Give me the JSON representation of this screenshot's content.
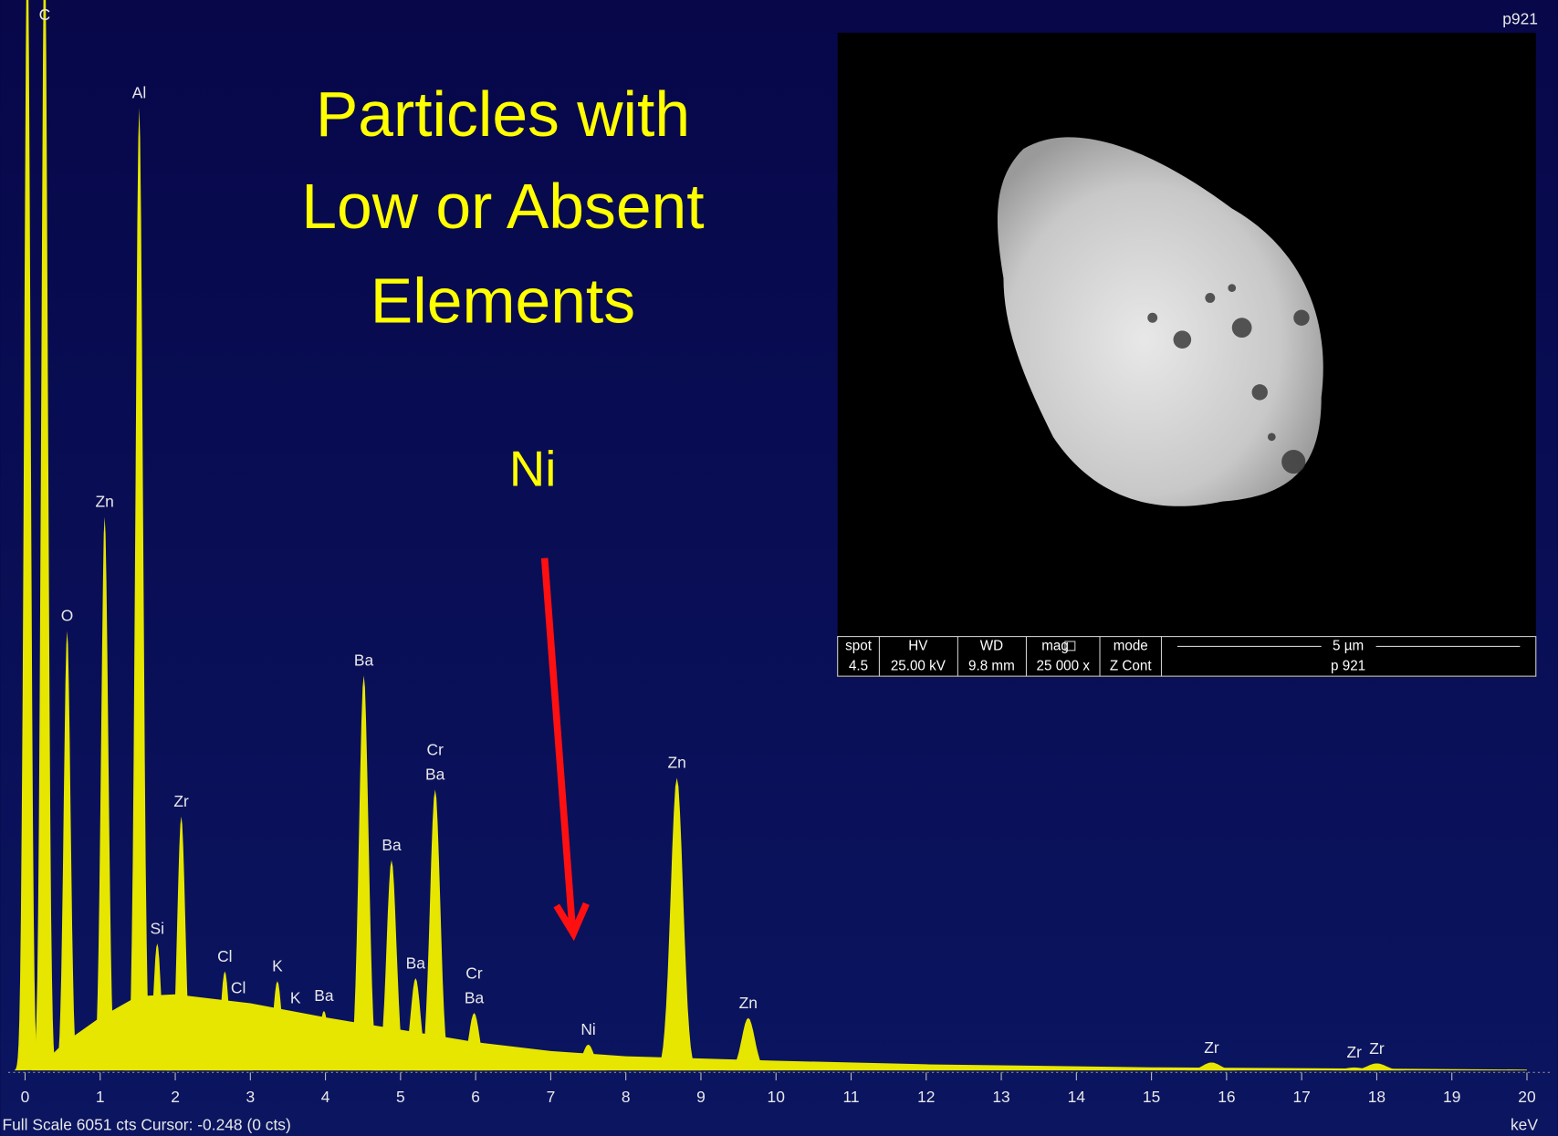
{
  "chart_data": {
    "type": "spectrum",
    "title_lines": [
      "Particles with",
      "Low or Absent",
      "Elements"
    ],
    "annotation": "Ni",
    "corner_label": "p921",
    "x_unit": "keV",
    "status": "Full Scale 6051 cts Cursor: -0.248  (0 cts)",
    "color": "#e6e600",
    "xlim": [
      0,
      20
    ],
    "xticks": [
      0,
      1,
      2,
      3,
      4,
      5,
      6,
      7,
      8,
      9,
      10,
      11,
      12,
      13,
      14,
      15,
      16,
      17,
      18,
      19,
      20
    ],
    "ylim": [
      0,
      6051
    ],
    "peaks": [
      {
        "energy": 0.03,
        "counts": 6500
      },
      {
        "labels": [
          "C"
        ],
        "energy": 0.26,
        "counts": 6500
      },
      {
        "labels": [
          "O"
        ],
        "energy": 0.56,
        "counts": 2485
      },
      {
        "labels": [
          "Zn"
        ],
        "energy": 1.06,
        "counts": 3130
      },
      {
        "labels": [
          "Al"
        ],
        "energy": 1.52,
        "counts": 5442
      },
      {
        "labels": [
          "Si"
        ],
        "energy": 1.76,
        "counts": 718
      },
      {
        "labels": [
          "Zr"
        ],
        "energy": 2.08,
        "counts": 1436
      },
      {
        "labels": [
          "Cl"
        ],
        "energy": 2.66,
        "counts": 561
      },
      {
        "labels": [
          "Cl"
        ],
        "energy": 2.84,
        "counts": 381
      },
      {
        "labels": [
          "K"
        ],
        "energy": 3.36,
        "counts": 505
      },
      {
        "labels": [
          "K"
        ],
        "energy": 3.6,
        "counts": 325
      },
      {
        "labels": [
          "Ba"
        ],
        "energy": 3.98,
        "counts": 337
      },
      {
        "labels": [
          "Ba"
        ],
        "energy": 4.51,
        "counts": 2233
      },
      {
        "labels": [
          "Ba"
        ],
        "energy": 4.88,
        "counts": 1189
      },
      {
        "labels": [
          "Ba"
        ],
        "energy": 5.2,
        "counts": 522
      },
      {
        "labels": [
          "Ba",
          "Cr"
        ],
        "energy": 5.46,
        "counts": 1588
      },
      {
        "labels": [
          "Ba",
          "Cr"
        ],
        "energy": 5.98,
        "counts": 325
      },
      {
        "labels": [
          "Ni"
        ],
        "energy": 7.5,
        "counts": 146
      },
      {
        "labels": [
          "Zn"
        ],
        "energy": 8.68,
        "counts": 1655
      },
      {
        "labels": [
          "Zn"
        ],
        "energy": 9.63,
        "counts": 297
      },
      {
        "labels": [
          "Zr"
        ],
        "energy": 15.8,
        "counts": 45
      },
      {
        "labels": [
          "Zr"
        ],
        "energy": 17.7,
        "counts": 17
      },
      {
        "labels": [
          "Zr"
        ],
        "energy": 18.0,
        "counts": 40
      }
    ],
    "background": {
      "x": [
        0.15,
        0.5,
        1.0,
        1.5,
        2,
        3,
        4,
        5,
        6,
        7,
        8,
        10,
        12,
        15,
        20
      ],
      "values": [
        0,
        150,
        300,
        420,
        430,
        380,
        300,
        230,
        160,
        110,
        80,
        55,
        35,
        18,
        5
      ]
    }
  },
  "sem_image": {
    "headers": [
      "spot",
      "HV",
      "WD",
      "mag",
      "mode"
    ],
    "values": [
      "4.5",
      "25.00 kV",
      "9.8 mm",
      "25 000 x",
      "Z Cont"
    ],
    "scale_bar": "5 µm",
    "label": "p 921"
  }
}
